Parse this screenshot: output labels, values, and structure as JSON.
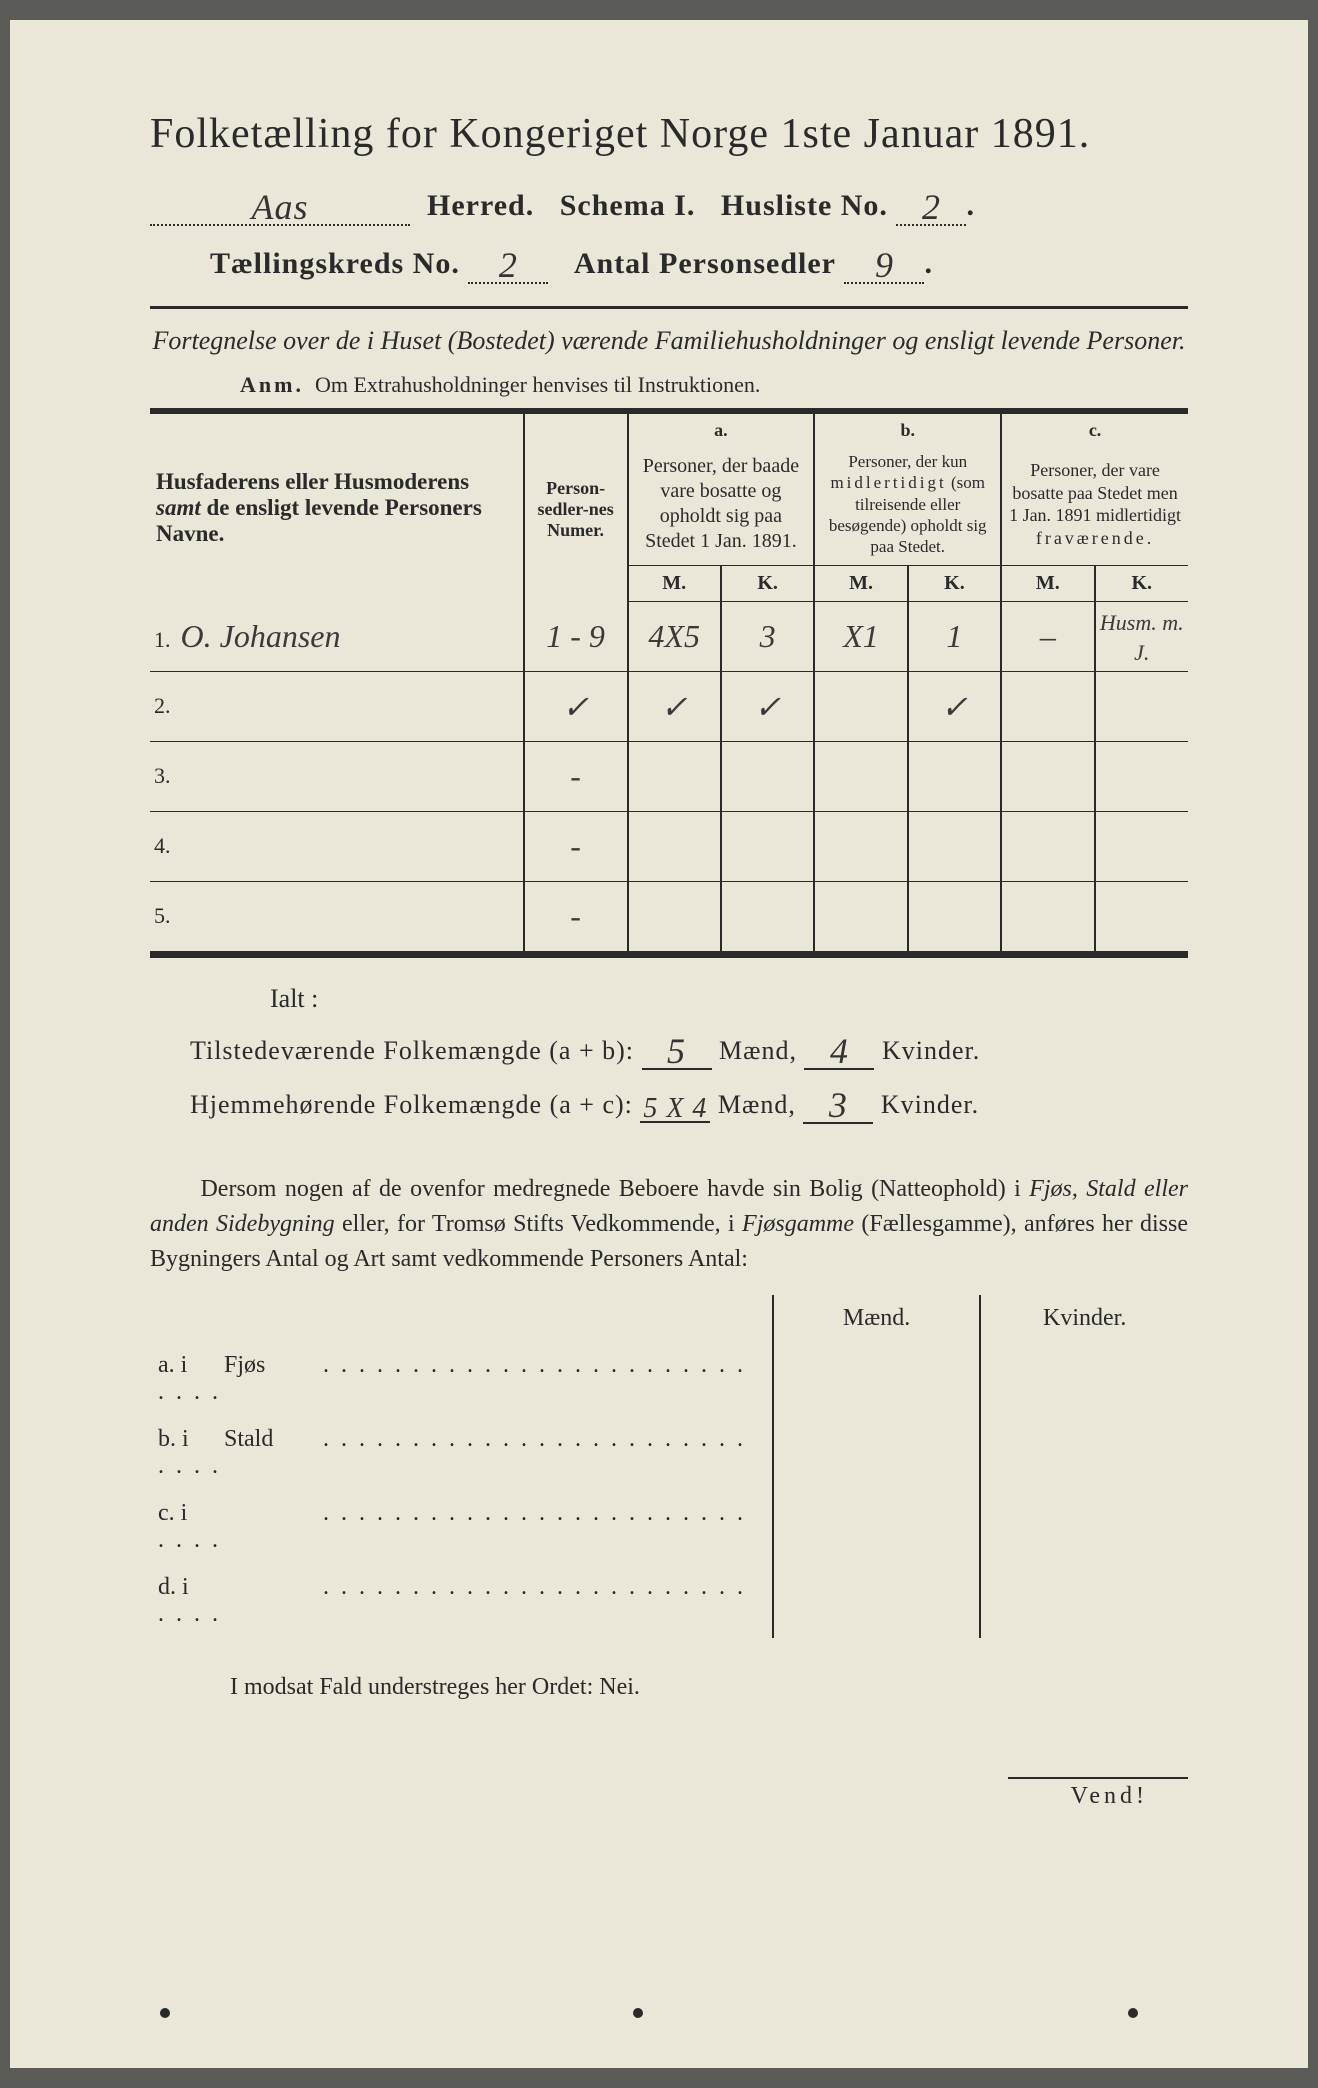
{
  "colors": {
    "paper": "#eae6d8",
    "ink": "#2a2a2a",
    "frame": "#5a5a56",
    "hand": "#3a3a3a"
  },
  "title": "Folketælling for Kongeriget Norge 1ste Januar 1891.",
  "header": {
    "herred_value": "Aas",
    "herred_label": "Herred.",
    "schema_label": "Schema I.",
    "husliste_label": "Husliste No.",
    "husliste_value": "2",
    "kreds_label": "Tællingskreds No.",
    "kreds_value": "2",
    "antal_label": "Antal Personsedler",
    "antal_value": "9"
  },
  "subtitle": "Fortegnelse over de i Huset (Bostedet) værende Familiehusholdninger og ensligt levende Personer.",
  "anm_label": "Anm.",
  "anm_text": "Om Extrahusholdninger henvises til Instruktionen.",
  "table": {
    "col_name": "Husfaderens eller Husmoderens samt de ensligt levende Personers Navne.",
    "col_num": "Person-sedler-nes Numer.",
    "a_label": "a.",
    "a_text": "Personer, der baade vare bosatte og opholdt sig paa Stedet 1 Jan. 1891.",
    "b_label": "b.",
    "b_text": "Personer, der kun midlertidigt (som tilreisende eller besøgende) opholdt sig paa Stedet.",
    "c_label": "c.",
    "c_text": "Personer, der vare bosatte paa Stedet men 1 Jan. 1891 midlertidigt fraværende.",
    "M": "M.",
    "K": "K.",
    "rows": [
      {
        "n": "1.",
        "name": "O. Johansen",
        "num": "1 - 9",
        "aM": "4X5",
        "aK": "3",
        "bM": "X1",
        "bK": "1",
        "cM": "–",
        "cK": "Husm. m. J."
      },
      {
        "n": "2.",
        "name": "",
        "num": "✓",
        "aM": "✓",
        "aK": "✓",
        "bM": "",
        "bK": "✓",
        "cM": "",
        "cK": ""
      },
      {
        "n": "3.",
        "name": "",
        "num": "-",
        "aM": "",
        "aK": "",
        "bM": "",
        "bK": "",
        "cM": "",
        "cK": ""
      },
      {
        "n": "4.",
        "name": "",
        "num": "-",
        "aM": "",
        "aK": "",
        "bM": "",
        "bK": "",
        "cM": "",
        "cK": ""
      },
      {
        "n": "5.",
        "name": "",
        "num": "-",
        "aM": "",
        "aK": "",
        "bM": "",
        "bK": "",
        "cM": "",
        "cK": ""
      }
    ]
  },
  "ialt": "Ialt :",
  "sum": {
    "tilstede_label": "Tilstedeværende Folkemængde (a + b):",
    "tilstede_m": "5",
    "tilstede_k": "4",
    "hjemme_label": "Hjemmehørende Folkemængde (a + c):",
    "hjemme_m": "5 X 4",
    "hjemme_k": "3",
    "maend": "Mænd,",
    "kvinder": "Kvinder."
  },
  "para": "Dersom nogen af de ovenfor medregnede Beboere havde sin Bolig (Natteophold) i Fjøs, Stald eller anden Sidebygning eller, for Tromsø Stifts Vedkommende, i Fjøsgamme (Fællesgamme), anføres her disse Bygningers Antal og Art samt vedkommende Personers Antal:",
  "side": {
    "maend": "Mænd.",
    "kvinder": "Kvinder.",
    "rows": [
      {
        "label": "a.  i",
        "name": "Fjøs"
      },
      {
        "label": "b.  i",
        "name": "Stald"
      },
      {
        "label": "c.  i",
        "name": ""
      },
      {
        "label": "d.  i",
        "name": ""
      }
    ]
  },
  "nei": "I modsat Fald understreges her Ordet: Nei.",
  "vend": "Vend!"
}
